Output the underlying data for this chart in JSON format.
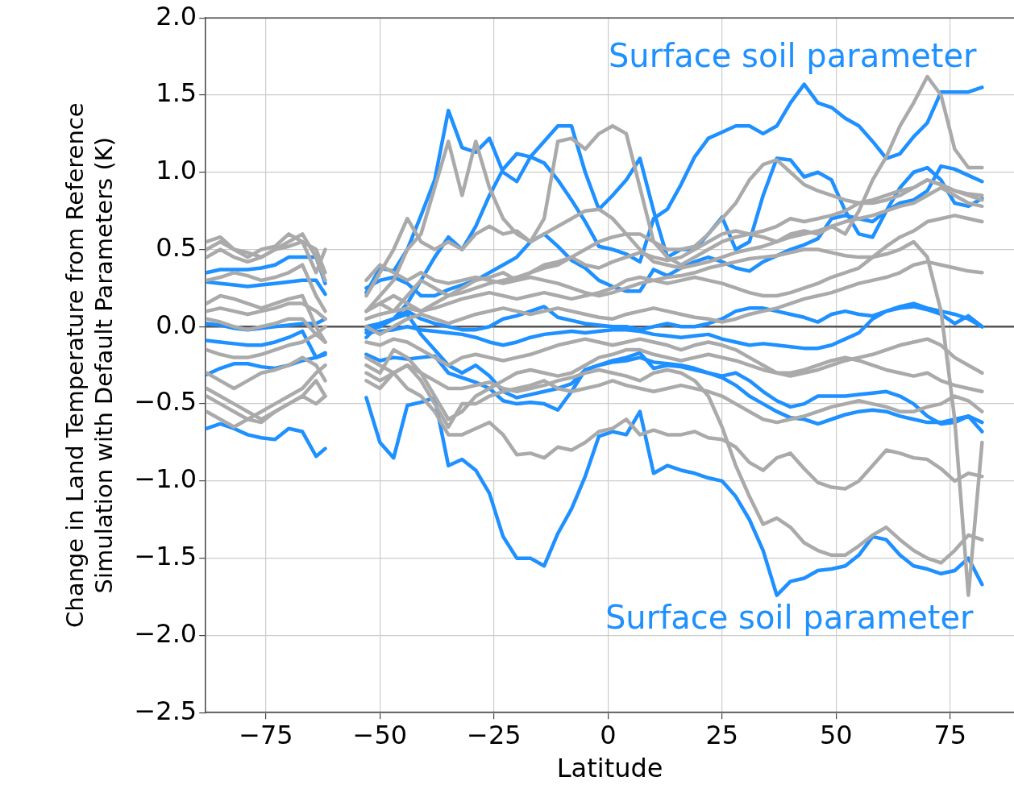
{
  "chart_data": {
    "type": "line",
    "xlabel": "Latitude",
    "ylabel": "Change in Land Temperature from Reference\nSimulation with Default Parameters (K)",
    "x": [
      -88,
      -85,
      -82,
      -79,
      -76,
      -73,
      -70,
      -67,
      -64,
      -62,
      -58,
      -53,
      -50,
      -47,
      -44,
      -41,
      -38,
      -35,
      -32,
      -29,
      -26,
      -23,
      -20,
      -17,
      -14,
      -11,
      -8,
      -5,
      -2,
      1,
      4,
      7,
      10,
      13,
      16,
      19,
      22,
      25,
      28,
      31,
      34,
      37,
      40,
      43,
      46,
      49,
      52,
      55,
      58,
      61,
      64,
      67,
      70,
      73,
      76,
      79,
      82
    ],
    "xlim": [
      -88.2,
      89
    ],
    "xticks": [
      {
        "value": -75,
        "label": "−75"
      },
      {
        "value": -50,
        "label": "−50"
      },
      {
        "value": -25,
        "label": "−25"
      },
      0,
      25,
      50,
      75
    ],
    "ylim": [
      -2.5,
      2.0
    ],
    "yticks": [
      {
        "value": -2.5,
        "label": "−2.5"
      },
      {
        "value": -2,
        "label": "−2.0"
      },
      {
        "value": -1.5,
        "label": "−1.5"
      },
      {
        "value": -1,
        "label": "−1.0"
      },
      {
        "value": -0.5,
        "label": "−0.5"
      },
      {
        "value": 0,
        "label": "0.0"
      },
      {
        "value": 0.5,
        "label": "0.5"
      },
      {
        "value": 1,
        "label": "1.0"
      },
      {
        "value": 1.5,
        "label": "1.5"
      },
      {
        "value": 2,
        "label": "2.0"
      }
    ],
    "grid": true,
    "legend": false,
    "ref_lines": [
      {
        "axis": "y",
        "value": 0,
        "color": "#555555"
      }
    ],
    "annotations": [
      "Surface soil parameter",
      "Surface soil parameter"
    ],
    "series": [
      {
        "color": "#aaaaaa",
        "values": [
          0.45,
          0.5,
          0.45,
          0.42,
          0.45,
          0.5,
          0.52,
          0.55,
          0.5,
          0.35,
          null,
          0.1,
          0.15,
          0.1,
          0.2,
          0.3,
          0.25,
          0.2,
          0.25,
          0.3,
          0.32,
          0.35,
          0.3,
          0.35,
          0.4,
          0.42,
          0.45,
          0.4,
          0.38,
          0.42,
          0.45,
          0.48,
          0.45,
          0.43,
          0.45,
          0.5,
          0.55,
          0.6,
          0.62,
          0.6,
          0.58,
          0.55,
          0.6,
          0.62,
          0.6,
          0.65,
          0.6,
          0.75,
          0.95,
          1.1,
          1.3,
          1.45,
          1.62,
          1.5,
          1.15,
          1.03,
          1.03
        ]
      },
      {
        "color": "#aaaaaa",
        "values": [
          0.5,
          0.55,
          0.5,
          0.48,
          0.45,
          0.5,
          0.55,
          0.6,
          0.45,
          0.3,
          null,
          0.1,
          0.2,
          0.3,
          0.5,
          0.6,
          0.9,
          1.2,
          0.85,
          1.2,
          0.9,
          0.7,
          0.6,
          0.55,
          0.7,
          1.2,
          1.22,
          1.15,
          1.25,
          1.3,
          1.25,
          0.9,
          0.55,
          0.45,
          0.4,
          0.45,
          0.5,
          0.55,
          0.58,
          0.6,
          0.62,
          0.65,
          0.7,
          0.68,
          0.7,
          0.72,
          0.75,
          0.8,
          0.82,
          0.85,
          0.88,
          0.9,
          0.95,
          0.92,
          0.88,
          0.85,
          0.82
        ]
      },
      {
        "color": "#aaaaaa",
        "values": [
          -0.4,
          -0.45,
          -0.5,
          -0.55,
          -0.6,
          -0.55,
          -0.5,
          -0.45,
          -0.35,
          -0.45,
          null,
          -0.3,
          -0.35,
          -0.3,
          -0.4,
          -0.45,
          -0.55,
          -0.7,
          -0.7,
          -0.66,
          -0.62,
          -0.7,
          -0.83,
          -0.82,
          -0.85,
          -0.78,
          -0.8,
          -0.75,
          -0.68,
          -0.66,
          -0.6,
          -0.7,
          -0.67,
          -0.7,
          -0.7,
          -0.68,
          -0.72,
          -0.73,
          -0.78,
          -0.88,
          -0.93,
          -0.85,
          -0.82,
          -0.92,
          -1.01,
          -1.04,
          -1.05,
          -1.0,
          -0.9,
          -0.8,
          -0.82,
          -0.85,
          -0.86,
          -0.92,
          -1.0,
          -0.95,
          -0.97
        ]
      },
      {
        "color": "#aaaaaa",
        "values": [
          -0.55,
          -0.6,
          -0.65,
          -0.6,
          -0.55,
          -0.5,
          -0.45,
          -0.4,
          -0.3,
          -0.25,
          null,
          -0.2,
          -0.25,
          -0.3,
          -0.25,
          -0.3,
          -0.35,
          -0.4,
          -0.4,
          -0.38,
          -0.36,
          -0.4,
          -0.42,
          -0.4,
          -0.38,
          -0.35,
          -0.33,
          -0.3,
          -0.28,
          -0.3,
          -0.32,
          -0.35,
          -0.3,
          -0.28,
          -0.3,
          -0.35,
          -0.45,
          -0.65,
          -0.9,
          -1.1,
          -1.28,
          -1.24,
          -1.3,
          -1.4,
          -1.45,
          -1.48,
          -1.48,
          -1.42,
          -1.35,
          -1.3,
          -1.38,
          -1.45,
          -1.5,
          -1.53,
          -1.45,
          -1.35,
          -1.38
        ]
      },
      {
        "color": "#aaaaaa",
        "values": [
          0.3,
          0.32,
          0.35,
          0.33,
          0.3,
          0.32,
          0.35,
          0.4,
          0.2,
          0.1,
          null,
          0.3,
          0.4,
          0.35,
          0.3,
          0.35,
          0.3,
          0.28,
          0.3,
          0.32,
          0.3,
          0.28,
          0.3,
          0.32,
          0.3,
          0.28,
          0.25,
          0.22,
          0.2,
          0.22,
          0.25,
          0.28,
          0.3,
          0.32,
          0.33,
          0.35,
          0.38,
          0.4,
          0.42,
          0.44,
          0.45,
          0.46,
          0.48,
          0.5,
          0.5,
          0.48,
          0.46,
          0.45,
          0.45,
          0.47,
          0.5,
          0.55,
          0.45,
          0.1,
          -0.6,
          -1.74,
          -0.75
        ]
      },
      {
        "color": "#aaaaaa",
        "values": [
          0.15,
          0.2,
          0.18,
          0.15,
          0.12,
          0.15,
          0.18,
          0.2,
          0.0,
          -0.1,
          null,
          0.1,
          0.15,
          0.2,
          0.15,
          0.1,
          0.15,
          0.2,
          0.22,
          0.25,
          0.28,
          0.3,
          0.32,
          0.35,
          0.38,
          0.4,
          0.45,
          0.5,
          0.55,
          0.58,
          0.6,
          0.6,
          0.55,
          0.5,
          0.5,
          0.52,
          0.6,
          0.7,
          0.8,
          0.95,
          1.05,
          1.08,
          1.0,
          0.92,
          0.88,
          0.85,
          0.82,
          0.8,
          0.8,
          0.82,
          0.85,
          0.9,
          0.95,
          0.92,
          0.88,
          0.86,
          0.85
        ]
      },
      {
        "color": "#aaaaaa",
        "values": [
          0.1,
          0.12,
          0.1,
          0.08,
          0.1,
          0.12,
          0.15,
          0.15,
          0.1,
          0.05,
          null,
          0.05,
          0.08,
          0.1,
          0.12,
          0.1,
          0.12,
          0.15,
          0.18,
          0.2,
          0.22,
          0.2,
          0.18,
          0.2,
          0.22,
          0.2,
          0.18,
          0.2,
          0.22,
          0.25,
          0.3,
          0.32,
          0.3,
          0.28,
          0.3,
          0.32,
          0.3,
          0.28,
          0.25,
          0.22,
          0.2,
          0.2,
          0.22,
          0.25,
          0.28,
          0.32,
          0.35,
          0.38,
          0.45,
          0.52,
          0.58,
          0.62,
          0.68,
          0.7,
          0.72,
          0.7,
          0.68
        ]
      },
      {
        "color": "#aaaaaa",
        "values": [
          -0.15,
          -0.18,
          -0.2,
          -0.2,
          -0.18,
          -0.15,
          -0.12,
          -0.1,
          -0.05,
          -0.1,
          null,
          -0.1,
          -0.12,
          -0.08,
          -0.1,
          -0.15,
          -0.2,
          -0.25,
          -0.2,
          -0.18,
          -0.2,
          -0.22,
          -0.2,
          -0.18,
          -0.15,
          -0.12,
          -0.1,
          -0.08,
          -0.1,
          -0.12,
          -0.1,
          -0.08,
          -0.1,
          -0.12,
          -0.15,
          -0.12,
          -0.1,
          -0.12,
          -0.15,
          -0.2,
          -0.25,
          -0.3,
          -0.3,
          -0.28,
          -0.25,
          -0.22,
          -0.2,
          -0.22,
          -0.25,
          -0.28,
          -0.3,
          -0.32,
          -0.3,
          -0.35,
          -0.38,
          -0.4,
          -0.42
        ]
      },
      {
        "color": "#aaaaaa",
        "values": [
          0.55,
          0.58,
          0.5,
          0.45,
          0.5,
          0.52,
          0.6,
          0.55,
          0.35,
          0.5,
          null,
          0.2,
          0.35,
          0.5,
          0.7,
          0.55,
          0.5,
          0.55,
          0.5,
          0.6,
          0.65,
          0.6,
          0.62,
          0.55,
          0.6,
          0.65,
          0.7,
          0.75,
          0.76,
          0.7,
          0.6,
          0.5,
          0.42,
          0.4,
          0.38,
          0.4,
          0.42,
          0.45,
          0.48,
          0.5,
          0.52,
          0.55,
          0.58,
          0.6,
          0.62,
          0.65,
          0.68,
          0.7,
          0.72,
          0.75,
          0.78,
          0.8,
          0.85,
          0.9,
          0.85,
          0.8,
          0.78
        ]
      },
      {
        "color": "#aaaaaa",
        "values": [
          -0.3,
          -0.35,
          -0.4,
          -0.35,
          -0.3,
          -0.28,
          -0.25,
          -0.2,
          -0.25,
          -0.35,
          null,
          -0.25,
          -0.3,
          -0.15,
          -0.2,
          -0.3,
          -0.45,
          -0.6,
          -0.55,
          -0.45,
          -0.4,
          -0.35,
          -0.3,
          -0.28,
          -0.3,
          -0.32,
          -0.3,
          -0.25,
          -0.2,
          -0.18,
          -0.15,
          -0.15,
          -0.18,
          -0.2,
          -0.22,
          -0.2,
          -0.18,
          -0.2,
          -0.22,
          -0.25,
          -0.28,
          -0.3,
          -0.32,
          -0.3,
          -0.28,
          -0.25,
          -0.22,
          -0.2,
          -0.18,
          -0.15,
          -0.12,
          -0.1,
          -0.08,
          -0.12,
          -0.2,
          -0.25,
          -0.3
        ]
      },
      {
        "color": "#aaaaaa",
        "values": [
          0.05,
          0.03,
          0.0,
          -0.02,
          0.0,
          0.02,
          0.05,
          0.05,
          -0.05,
          0.0,
          null,
          0.0,
          -0.05,
          0.0,
          0.05,
          0.08,
          0.05,
          0.02,
          0.05,
          0.08,
          0.1,
          0.12,
          0.1,
          0.08,
          0.1,
          0.12,
          0.1,
          0.08,
          0.06,
          0.05,
          0.08,
          0.1,
          0.12,
          0.1,
          0.08,
          0.06,
          0.05,
          0.03,
          0.05,
          0.08,
          0.1,
          0.12,
          0.15,
          0.18,
          0.2,
          0.22,
          0.25,
          0.28,
          0.3,
          0.32,
          0.35,
          0.4,
          0.42,
          0.4,
          0.38,
          0.36,
          0.35
        ]
      },
      {
        "color": "#aaaaaa",
        "values": [
          -0.45,
          -0.5,
          -0.55,
          -0.6,
          -0.62,
          -0.55,
          -0.5,
          -0.45,
          -0.5,
          -0.45,
          null,
          -0.35,
          -0.4,
          -0.3,
          -0.25,
          -0.35,
          -0.5,
          -0.65,
          -0.5,
          -0.5,
          -0.45,
          -0.42,
          -0.4,
          -0.38,
          -0.35,
          -0.4,
          -0.42,
          -0.4,
          -0.38,
          -0.35,
          -0.38,
          -0.4,
          -0.42,
          -0.4,
          -0.38,
          -0.4,
          -0.42,
          -0.45,
          -0.5,
          -0.55,
          -0.6,
          -0.62,
          -0.6,
          -0.58,
          -0.55,
          -0.52,
          -0.5,
          -0.48,
          -0.5,
          -0.52,
          -0.55,
          -0.55,
          -0.52,
          -0.5,
          -0.45,
          -0.48,
          -0.55
        ]
      },
      {
        "color": "#1e90ff",
        "values": [
          0.35,
          0.37,
          0.37,
          0.37,
          0.38,
          0.4,
          0.45,
          0.45,
          0.45,
          0.28,
          null,
          0.22,
          0.38,
          0.36,
          0.5,
          0.72,
          0.95,
          1.4,
          1.16,
          1.13,
          1.22,
          1.0,
          0.94,
          1.1,
          1.2,
          1.3,
          1.3,
          1.0,
          0.76,
          0.85,
          0.95,
          1.09,
          0.75,
          0.45,
          0.5,
          0.5,
          0.6,
          0.71,
          0.5,
          0.55,
          0.85,
          1.09,
          1.08,
          0.97,
          1.0,
          0.95,
          0.75,
          0.6,
          0.58,
          0.75,
          0.9,
          1.0,
          1.03,
          0.95,
          0.8,
          0.78,
          0.83
        ]
      },
      {
        "color": "#1e90ff",
        "values": [
          0.29,
          0.28,
          0.27,
          0.26,
          0.27,
          0.28,
          0.29,
          0.3,
          0.3,
          0.21,
          null,
          -0.07,
          0.02,
          0.05,
          0.15,
          0.3,
          0.45,
          0.58,
          0.5,
          0.65,
          0.85,
          1.02,
          1.12,
          1.1,
          1.06,
          0.95,
          0.82,
          0.68,
          0.52,
          0.5,
          0.47,
          0.42,
          0.7,
          0.76,
          0.92,
          1.1,
          1.22,
          1.26,
          1.3,
          1.3,
          1.25,
          1.3,
          1.45,
          1.57,
          1.45,
          1.42,
          1.35,
          1.3,
          1.2,
          1.09,
          1.12,
          1.23,
          1.32,
          1.52,
          1.52,
          1.52,
          1.55
        ]
      },
      {
        "color": "#1e90ff",
        "values": [
          0.02,
          0.01,
          -0.01,
          -0.02,
          -0.01,
          0.0,
          0.01,
          0.02,
          0.02,
          0.05,
          null,
          0.25,
          0.3,
          0.32,
          0.28,
          0.2,
          0.2,
          0.24,
          0.27,
          0.3,
          0.35,
          0.4,
          0.45,
          0.55,
          0.6,
          0.52,
          0.43,
          0.38,
          0.3,
          0.26,
          0.23,
          0.23,
          0.37,
          0.33,
          0.38,
          0.42,
          0.45,
          0.42,
          0.38,
          0.36,
          0.42,
          0.46,
          0.5,
          0.53,
          0.57,
          0.7,
          0.72,
          0.7,
          0.68,
          0.75,
          0.8,
          0.82,
          0.88,
          1.04,
          1.02,
          0.98,
          0.94
        ]
      },
      {
        "color": "#1e90ff",
        "values": [
          -0.09,
          -0.1,
          -0.11,
          -0.12,
          -0.12,
          -0.1,
          -0.07,
          -0.03,
          -0.2,
          -0.18,
          null,
          0.0,
          0.02,
          0.05,
          0.1,
          0.05,
          0.02,
          0.0,
          -0.02,
          -0.02,
          0.0,
          0.05,
          0.07,
          0.1,
          0.13,
          0.06,
          0.04,
          0.02,
          0.01,
          0.0,
          0.0,
          -0.02,
          0.0,
          0.02,
          0.0,
          0.0,
          0.02,
          0.05,
          0.1,
          0.12,
          0.12,
          0.1,
          0.08,
          0.06,
          0.03,
          0.08,
          0.1,
          0.08,
          0.07,
          0.1,
          0.12,
          0.13,
          0.11,
          0.08,
          0.02,
          0.07,
          0.0
        ]
      },
      {
        "color": "#1e90ff",
        "values": [
          -0.31,
          -0.27,
          -0.24,
          -0.24,
          -0.26,
          -0.27,
          -0.25,
          -0.22,
          -0.2,
          -0.17,
          null,
          -0.04,
          -0.03,
          -0.02,
          0.0,
          -0.02,
          -0.03,
          -0.04,
          -0.05,
          -0.07,
          -0.1,
          -0.12,
          -0.1,
          -0.07,
          -0.05,
          -0.04,
          -0.03,
          -0.04,
          -0.03,
          -0.02,
          -0.02,
          -0.03,
          -0.05,
          -0.06,
          -0.07,
          -0.06,
          -0.05,
          -0.08,
          -0.1,
          -0.12,
          -0.11,
          -0.12,
          -0.13,
          -0.14,
          -0.14,
          -0.12,
          -0.08,
          -0.04,
          0.05,
          0.1,
          0.13,
          0.15,
          0.12,
          0.1,
          0.08,
          0.05,
          0.0
        ]
      },
      {
        "color": "#1e90ff",
        "values": [
          null,
          null,
          null,
          null,
          null,
          null,
          null,
          null,
          null,
          null,
          null,
          -0.18,
          -0.22,
          -0.2,
          -0.21,
          -0.2,
          -0.19,
          -0.3,
          -0.33,
          -0.36,
          -0.4,
          -0.48,
          -0.5,
          -0.49,
          -0.5,
          -0.54,
          -0.42,
          -0.28,
          -0.25,
          -0.22,
          -0.2,
          -0.17,
          -0.27,
          -0.25,
          -0.26,
          -0.28,
          -0.3,
          -0.32,
          -0.3,
          -0.35,
          -0.42,
          -0.48,
          -0.52,
          -0.5,
          -0.45,
          -0.45,
          -0.45,
          -0.44,
          -0.43,
          -0.42,
          -0.45,
          -0.5,
          -0.58,
          -0.63,
          -0.62,
          -0.58,
          -0.68
        ]
      },
      {
        "color": "#1e90ff",
        "values": [
          null,
          null,
          null,
          null,
          null,
          null,
          null,
          null,
          null,
          null,
          null,
          -0.02,
          0.0,
          0.05,
          0.08,
          -0.05,
          -0.15,
          -0.25,
          -0.3,
          -0.25,
          -0.32,
          -0.42,
          -0.46,
          -0.44,
          -0.42,
          -0.4,
          -0.37,
          -0.28,
          -0.25,
          -0.23,
          -0.22,
          -0.2,
          -0.23,
          -0.24,
          -0.25,
          -0.27,
          -0.3,
          -0.33,
          -0.38,
          -0.45,
          -0.5,
          -0.55,
          -0.59,
          -0.6,
          -0.63,
          -0.6,
          -0.57,
          -0.55,
          -0.54,
          -0.55,
          -0.58,
          -0.6,
          -0.62,
          -0.62,
          -0.6,
          -0.58,
          -0.62
        ]
      },
      {
        "color": "#1e90ff",
        "values": [
          -0.66,
          -0.63,
          -0.66,
          -0.7,
          -0.72,
          -0.73,
          -0.66,
          -0.68,
          -0.84,
          -0.79,
          null,
          -0.46,
          -0.75,
          -0.85,
          -0.51,
          -0.49,
          -0.46,
          -0.9,
          -0.86,
          -0.93,
          -1.08,
          -1.36,
          -1.5,
          -1.5,
          -1.55,
          -1.34,
          -1.18,
          -0.97,
          -0.71,
          -0.68,
          -0.7,
          -0.55,
          -0.95,
          -0.9,
          -0.93,
          -0.95,
          -0.98,
          -1.0,
          -1.1,
          -1.25,
          -1.45,
          -1.74,
          -1.65,
          -1.63,
          -1.58,
          -1.57,
          -1.55,
          -1.48,
          -1.36,
          -1.38,
          -1.48,
          -1.55,
          -1.57,
          -1.6,
          -1.58,
          -1.5,
          -1.67
        ]
      }
    ]
  }
}
